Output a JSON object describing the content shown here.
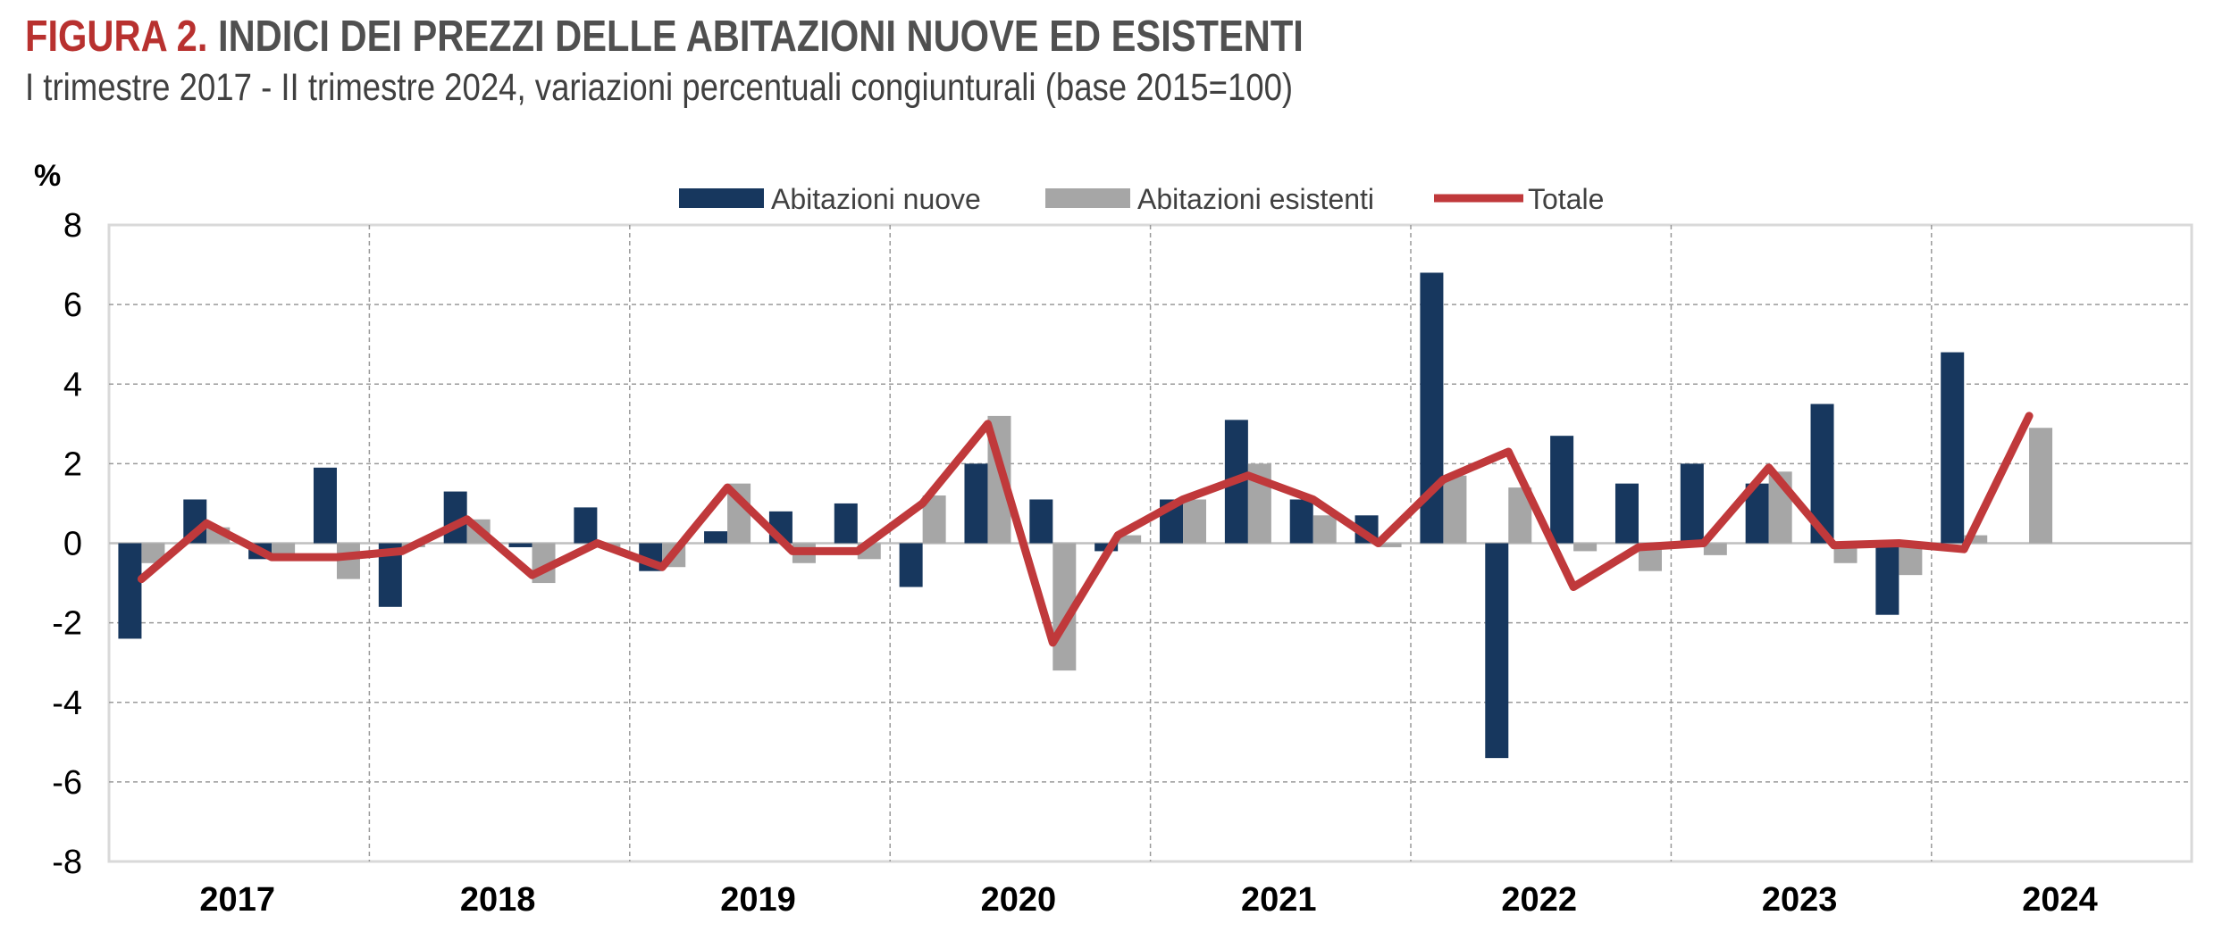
{
  "figure": {
    "prefix": "FIGURA 2.",
    "title": "INDICI DEI PREZZI DELLE ABITAZIONI NUOVE ED ESISTENTI",
    "subtitle": "I trimestre 2017 - II trimestre 2024, variazioni percentuali congiunturali (base 2015=100)"
  },
  "chart_data": {
    "type": "bar",
    "ylabel": "%",
    "ylim": [
      -8,
      8
    ],
    "yticks": [
      8,
      6,
      4,
      2,
      0,
      -2,
      -4,
      -6,
      -8
    ],
    "grid": true,
    "legend_position": "top",
    "year_labels": [
      "2017",
      "2018",
      "2019",
      "2020",
      "2021",
      "2022",
      "2023",
      "2024"
    ],
    "categories": [
      "2017 I",
      "2017 II",
      "2017 III",
      "2017 IV",
      "2018 I",
      "2018 II",
      "2018 III",
      "2018 IV",
      "2019 I",
      "2019 II",
      "2019 III",
      "2019 IV",
      "2020 I",
      "2020 II",
      "2020 III",
      "2020 IV",
      "2021 I",
      "2021 II",
      "2021 III",
      "2021 IV",
      "2022 I",
      "2022 II",
      "2022 III",
      "2022 IV",
      "2023 I",
      "2023 II",
      "2023 III",
      "2023 IV",
      "2024 I",
      "2024 II"
    ],
    "series": [
      {
        "name": "Abitazioni nuove",
        "type": "bar",
        "color": "#17375e",
        "values": [
          -2.4,
          1.1,
          -0.4,
          1.9,
          -1.6,
          1.3,
          -0.1,
          0.9,
          -0.7,
          0.3,
          0.8,
          1.0,
          -1.1,
          2.0,
          1.1,
          -0.2,
          1.1,
          3.1,
          1.1,
          0.7,
          6.8,
          -5.4,
          2.7,
          1.5,
          2.0,
          1.5,
          3.5,
          -1.8,
          4.8,
          null
        ]
      },
      {
        "name": "Abitazioni esistenti",
        "type": "bar",
        "color": "#a6a6a6",
        "values": [
          -0.5,
          0.4,
          -0.3,
          -0.9,
          -0.1,
          0.6,
          -1.0,
          -0.1,
          -0.6,
          1.5,
          -0.5,
          -0.4,
          1.2,
          3.2,
          -3.2,
          0.2,
          1.1,
          2.0,
          0.7,
          -0.1,
          1.7,
          1.4,
          -0.2,
          -0.7,
          -0.3,
          1.8,
          -0.5,
          -0.8,
          0.2,
          2.9
        ]
      },
      {
        "name": "Totale",
        "type": "line",
        "color": "#c0393b",
        "values": [
          -0.9,
          0.5,
          -0.35,
          -0.35,
          -0.2,
          0.6,
          -0.8,
          0.0,
          -0.6,
          1.4,
          -0.2,
          -0.2,
          1.0,
          3.0,
          -2.5,
          0.2,
          1.1,
          1.7,
          1.1,
          0.0,
          1.6,
          2.3,
          -1.1,
          -0.1,
          0.0,
          1.9,
          -0.05,
          0.0,
          -0.15,
          3.2
        ]
      }
    ]
  }
}
